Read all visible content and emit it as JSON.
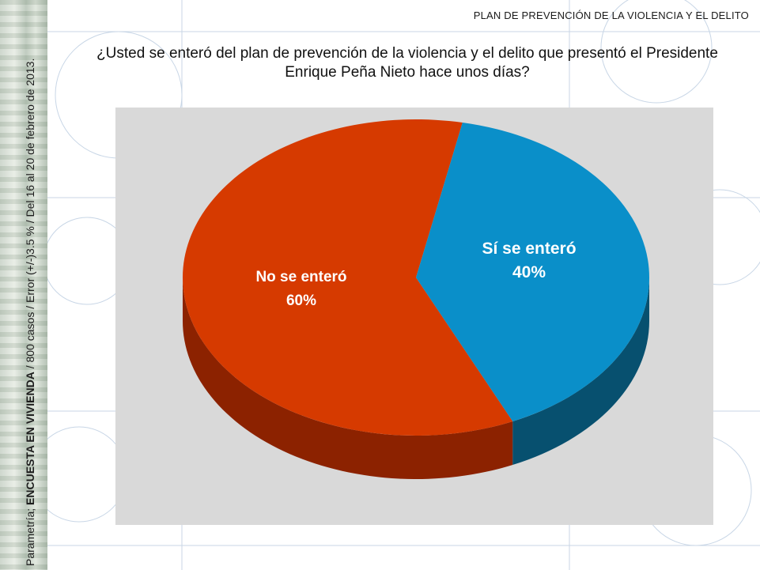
{
  "header": {
    "title": "PLAN DE PREVENCIÓN DE LA VIOLENCIA Y EL DELITO"
  },
  "question": "¿Usted se enteró del plan de prevención de la violencia y el delito que presentó el Presidente Enrique Peña Nieto hace unos días?",
  "side_note": {
    "prefix": "Parametría; ",
    "bold": "ENCUESTA EN VIVIENDA",
    "suffix": " / 800 casos / Error (+/-)3.5 % / Del 16 al 20 de febrero de 2013."
  },
  "chart_data": {
    "type": "pie",
    "slices": [
      {
        "label": "No se enteró",
        "value": 60,
        "value_label": "60%",
        "color": "#d63a00",
        "side_color": "#8c2200"
      },
      {
        "label": "Sí se enteró",
        "value": 40,
        "value_label": "40%",
        "color": "#0a8fc9",
        "side_color": "#07506f"
      }
    ]
  }
}
